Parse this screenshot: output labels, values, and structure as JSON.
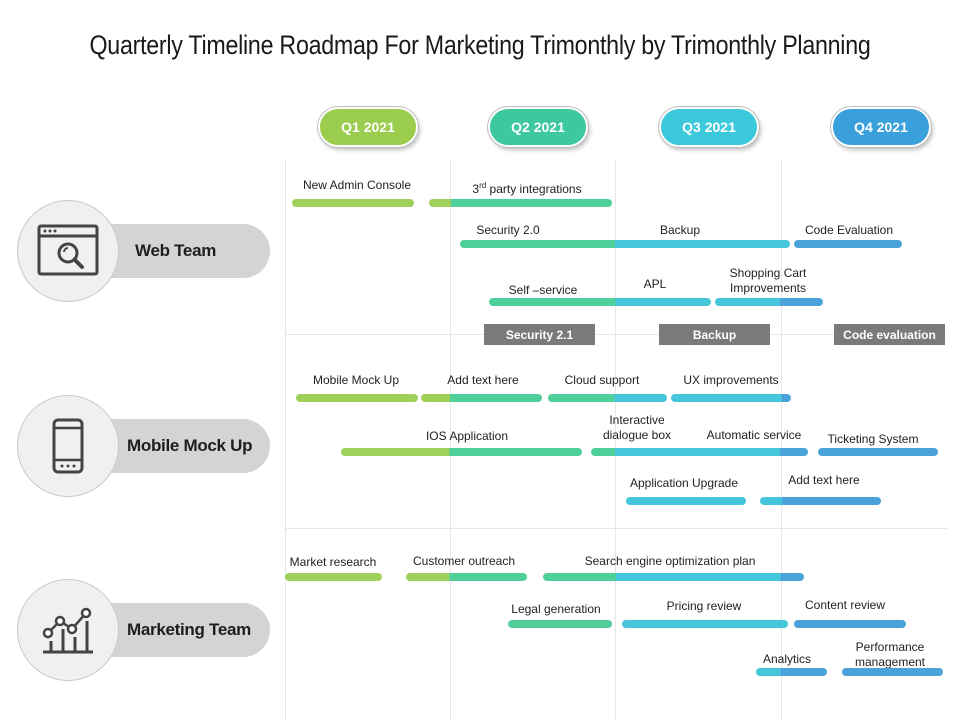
{
  "title": "Quarterly Timeline Roadmap For Marketing Trimonthly by Trimonthly Planning",
  "colors": {
    "green": "#9fd05a",
    "teal": "#4fcf9a",
    "cyan": "#45c6da",
    "blue": "#4aa3d8",
    "band": "#7a7a7a",
    "pill": "#d4d4d4"
  },
  "quarters": [
    {
      "label": "Q1 2021",
      "color": "#9acd4e"
    },
    {
      "label": "Q2 2021",
      "color": "#3ec8a0"
    },
    {
      "label": "Q3 2021",
      "color": "#3cc9dc"
    },
    {
      "label": "Q4 2021",
      "color": "#3aa0dc"
    }
  ],
  "teams": [
    {
      "name": "Web Team",
      "icon": "browser-search-icon"
    },
    {
      "name": "Mobile Mock Up",
      "icon": "smartphone-icon"
    },
    {
      "name": "Marketing Team",
      "icon": "line-chart-icon"
    }
  ],
  "tasks": {
    "new_admin_console": "New Admin Console",
    "third_party_prefix": "3",
    "third_party_sup": "rd",
    "third_party_suffix": " party integrations",
    "security_2": "Security 2.0",
    "backup": "Backup",
    "code_evaluation": "Code Evaluation",
    "self_service": "Self –service",
    "apl": "APL",
    "shopping_cart_1": "Shopping Cart",
    "shopping_cart_2": "Improvements",
    "mobile_mock_up": "Mobile Mock Up",
    "add_text_here_1": "Add text here",
    "cloud_support": "Cloud support",
    "ux_improvements": "UX improvements",
    "ios_application": "IOS Application",
    "interactive_1": "Interactive",
    "interactive_2": "dialogue box",
    "automatic_service": "Automatic service",
    "ticketing_system": "Ticketing  System",
    "application_upgrade": "Application Upgrade",
    "add_text_here_2": "Add text here",
    "market_research": "Market research",
    "customer_outreach": "Customer outreach",
    "seo_plan": "Search engine  optimization plan",
    "legal_generation": "Legal generation",
    "pricing_review": "Pricing review",
    "content_review": "Content  review",
    "analytics": "Analytics",
    "performance_1": "Performance",
    "performance_2": "management"
  },
  "bands": {
    "security_21": "Security 2.1",
    "backup": "Backup",
    "code_evaluation": "Code evaluation"
  }
}
